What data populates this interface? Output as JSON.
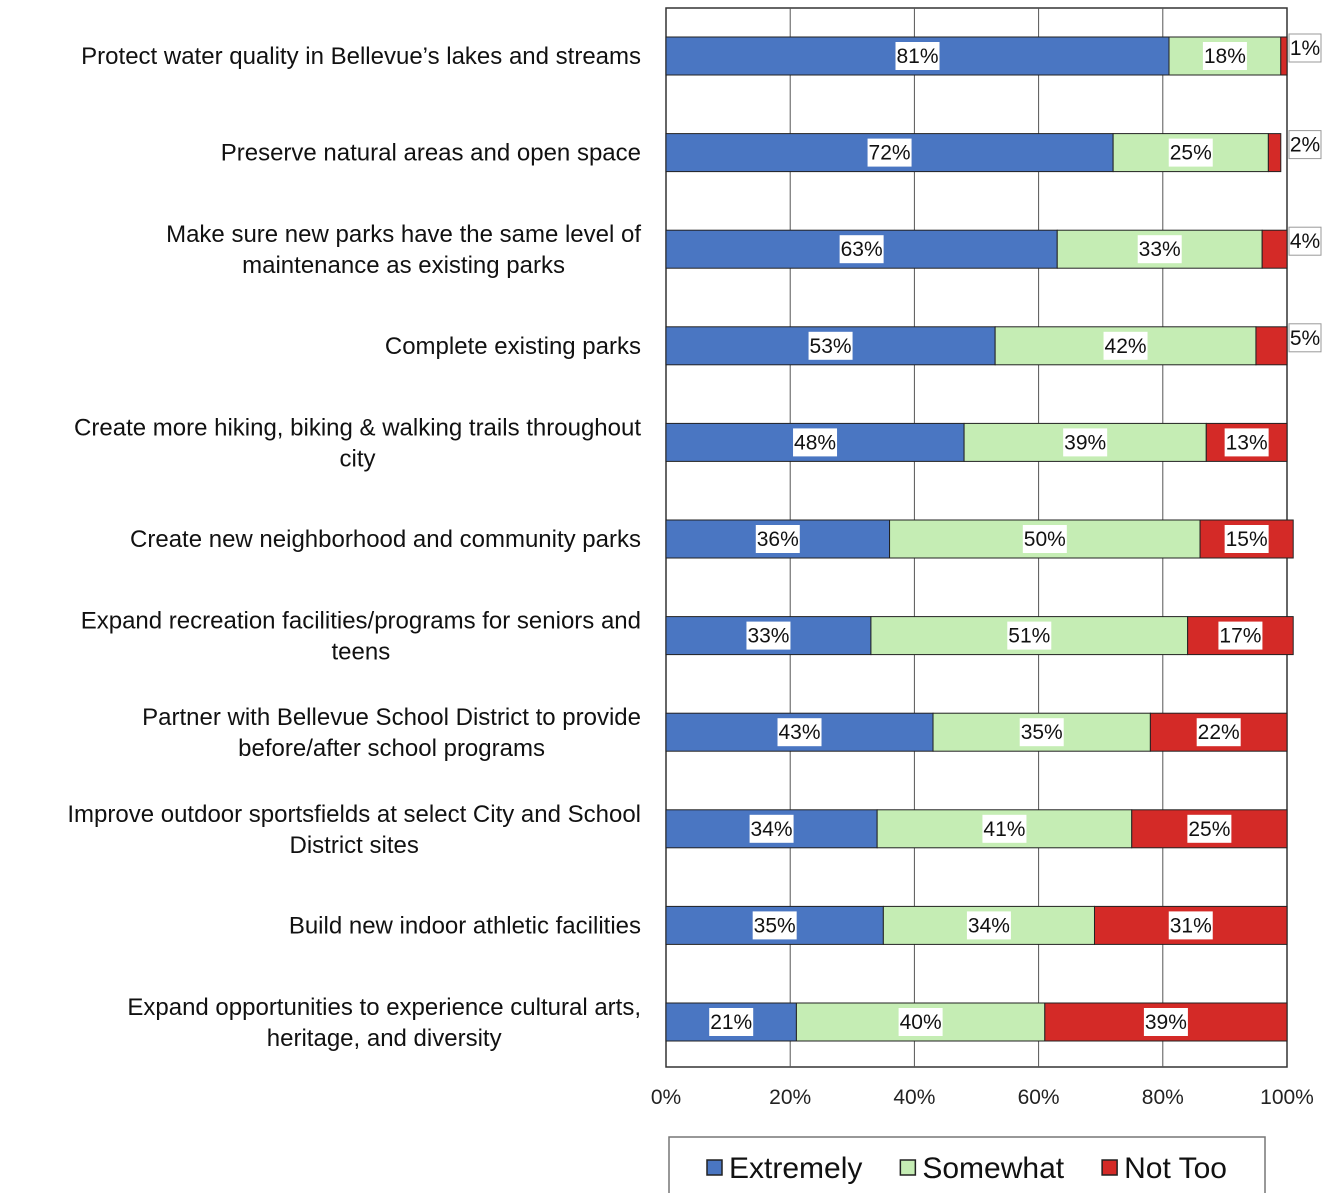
{
  "chart_data": {
    "type": "bar",
    "orientation": "horizontal",
    "stacked": true,
    "percent_stacked": true,
    "categories": [
      [
        "Protect water quality in Bellevue’s lakes and streams"
      ],
      [
        "Preserve natural areas and open space"
      ],
      [
        "Make sure new parks have the same level of",
        "maintenance as existing parks"
      ],
      [
        "Complete existing parks"
      ],
      [
        "Create more hiking, biking & walking trails throughout",
        "city"
      ],
      [
        "Create new neighborhood and community parks"
      ],
      [
        "Expand recreation facilities/programs for seniors and",
        "teens"
      ],
      [
        "Partner with Bellevue School District to provide",
        "before/after school programs"
      ],
      [
        "Improve outdoor sportsfields at select City and School",
        "District sites"
      ],
      [
        "Build new indoor athletic facilities"
      ],
      [
        "Expand opportunities to experience cultural arts,",
        "heritage, and diversity"
      ]
    ],
    "series": [
      {
        "name": "Extremely",
        "color": "#4a76c2",
        "values": [
          81,
          72,
          63,
          53,
          48,
          36,
          33,
          43,
          34,
          35,
          21
        ]
      },
      {
        "name": "Somewhat",
        "color": "#c5edb4",
        "values": [
          18,
          25,
          33,
          42,
          39,
          50,
          51,
          35,
          41,
          34,
          40
        ]
      },
      {
        "name": "Not Too",
        "color": "#d42a27",
        "values": [
          1,
          2,
          4,
          5,
          13,
          15,
          17,
          22,
          25,
          31,
          39
        ]
      }
    ],
    "outside_label_series": "Not Too",
    "outside_label_rows": [
      0,
      1,
      2,
      3
    ],
    "x_ticks": [
      "0%",
      "20%",
      "40%",
      "60%",
      "80%",
      "100%"
    ],
    "xlim": [
      0,
      100
    ],
    "grid": "vertical",
    "legend": "bottom",
    "value_suffix": "%"
  }
}
